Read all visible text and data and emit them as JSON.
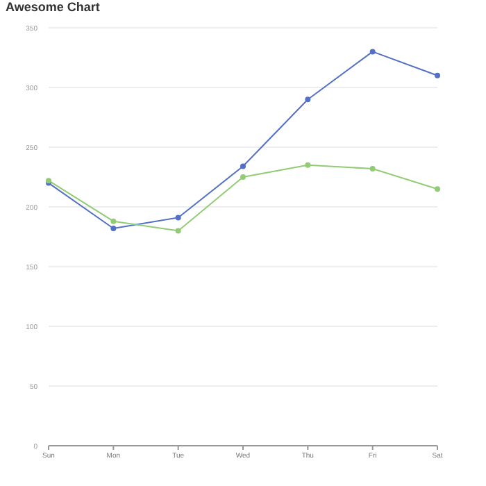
{
  "chart_data": {
    "type": "line",
    "title": "Awesome Chart",
    "categories": [
      "Sun",
      "Mon",
      "Tue",
      "Wed",
      "Thu",
      "Fri",
      "Sat"
    ],
    "series": [
      {
        "color": "#5470c6",
        "values": [
          220,
          182,
          191,
          234,
          290,
          330,
          310
        ]
      },
      {
        "color": "#91cc75",
        "values": [
          222,
          188,
          180,
          225,
          235,
          232,
          215
        ]
      }
    ],
    "ylim": [
      0,
      350
    ],
    "yticks": [
      0,
      50,
      100,
      150,
      200,
      250,
      300,
      350
    ],
    "grid": "y",
    "marker": "circle"
  }
}
